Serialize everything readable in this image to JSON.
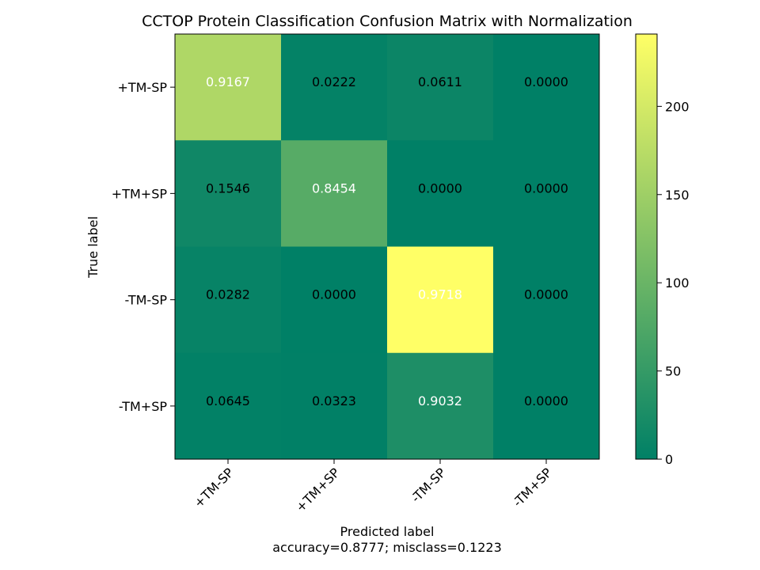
{
  "chart_data": {
    "type": "heatmap",
    "title": "CCTOP Protein Classification Confusion Matrix with Normalization",
    "xlabel": "Predicted label",
    "xlabel_sub": "accuracy=0.8777; misclass=0.1223",
    "ylabel": "True label",
    "x_categories": [
      "+TM-SP",
      "+TM+SP",
      "-TM-SP",
      "-TM+SP"
    ],
    "y_categories": [
      "+TM-SP",
      "+TM+SP",
      "-TM-SP",
      "-TM+SP"
    ],
    "values": [
      [
        0.9167,
        0.0222,
        0.0611,
        0.0
      ],
      [
        0.1546,
        0.8454,
        0.0,
        0.0
      ],
      [
        0.0282,
        0.0,
        0.9718,
        0.0
      ],
      [
        0.0645,
        0.0323,
        0.9032,
        0.0
      ]
    ],
    "cell_labels": [
      [
        "0.9167",
        "0.0222",
        "0.0611",
        "0.0000"
      ],
      [
        "0.1546",
        "0.8454",
        "0.0000",
        "0.0000"
      ],
      [
        "0.0282",
        "0.0000",
        "0.9718",
        "0.0000"
      ],
      [
        "0.0645",
        "0.0323",
        "0.9032",
        "0.0000"
      ]
    ],
    "counts": [
      [
        165,
        4,
        11,
        0
      ],
      [
        15,
        82,
        0,
        0
      ],
      [
        7,
        0,
        241,
        0
      ],
      [
        2,
        1,
        28,
        0
      ]
    ],
    "colormap": "summer",
    "colorbar": {
      "min": 0,
      "max": 241,
      "ticks": [
        0,
        50,
        100,
        150,
        200
      ],
      "tick_labels": [
        "0",
        "50",
        "100",
        "150",
        "200"
      ]
    },
    "text_colors": {
      "light": "#ffffff",
      "dark": "#000000"
    },
    "grid": false
  }
}
